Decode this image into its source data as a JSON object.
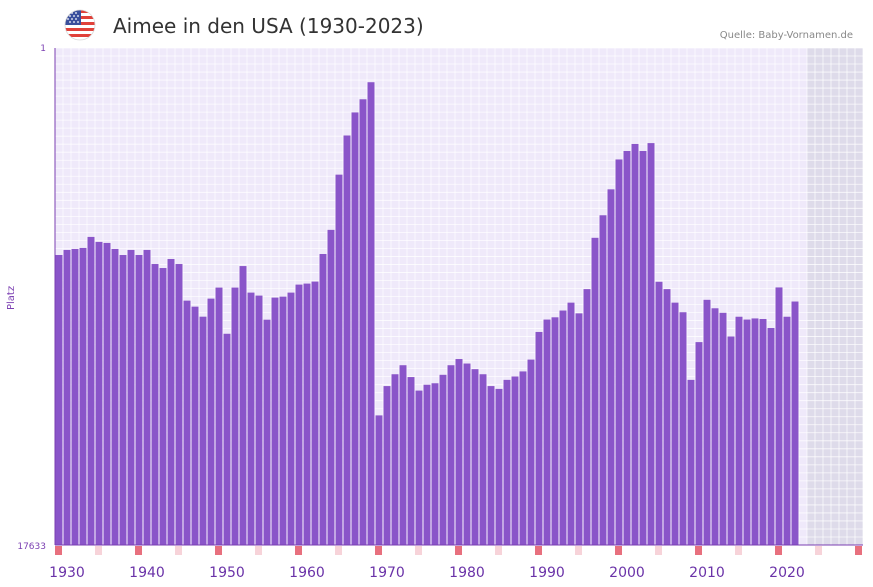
{
  "header": {
    "title": "Aimee in den USA (1930-2023)",
    "source": "Quelle: Baby-Vornamen.de",
    "flag_icon": "us-flag-icon"
  },
  "colors": {
    "bar": "#8a55c9",
    "plot_bg": "#efe9fa",
    "grid": "#ffffff",
    "future_bg": "#dedbea",
    "axis": "#7b3fb2",
    "label": "#6a32a8",
    "decade_marker": "#e8707e",
    "half_decade_marker": "#f7d3d9"
  },
  "chart_data": {
    "type": "bar",
    "title": "Aimee in den USA (1930-2023)",
    "xlabel": "",
    "ylabel": "Platz",
    "y_axis_inverted": true,
    "ylim": [
      1,
      17633
    ],
    "x_range": [
      1929,
      2029
    ],
    "y_tick_labels": [
      "1",
      "17633"
    ],
    "x_tick_labels": [
      "1930",
      "1940",
      "1950",
      "1960",
      "1970",
      "1980",
      "1990",
      "2000",
      "2010",
      "2020"
    ],
    "x_ticks": [
      1930,
      1940,
      1950,
      1960,
      1970,
      1980,
      1990,
      2000,
      2010,
      2020
    ],
    "decade_marker_years": [
      1929,
      1939,
      1949,
      1959,
      1969,
      1979,
      1989,
      1999,
      2009,
      2019,
      2029
    ],
    "half_decade_marker_years": [
      1934,
      1944,
      1954,
      1964,
      1974,
      1984,
      1994,
      2004,
      2014,
      2024
    ],
    "future_shade_from_year": 2023,
    "x": [
      1929,
      1930,
      1931,
      1932,
      1933,
      1934,
      1935,
      1936,
      1937,
      1938,
      1939,
      1940,
      1941,
      1942,
      1943,
      1944,
      1945,
      1946,
      1947,
      1948,
      1949,
      1950,
      1951,
      1952,
      1953,
      1954,
      1955,
      1956,
      1957,
      1958,
      1959,
      1960,
      1961,
      1962,
      1963,
      1964,
      1965,
      1966,
      1967,
      1968,
      1969,
      1970,
      1971,
      1972,
      1973,
      1974,
      1975,
      1976,
      1977,
      1978,
      1979,
      1980,
      1981,
      1982,
      1983,
      1984,
      1985,
      1986,
      1987,
      1988,
      1989,
      1990,
      1991,
      1992,
      1993,
      1994,
      1995,
      1996,
      1997,
      1998,
      1999,
      2000,
      2001,
      2002,
      2003,
      2004,
      2005,
      2006,
      2007,
      2008,
      2009,
      2010,
      2011,
      2012,
      2013,
      2014,
      2015,
      2016,
      2017,
      2018,
      2019,
      2020,
      2021
    ],
    "values": [
      7345,
      7166,
      7130,
      7095,
      6703,
      6881,
      6917,
      7130,
      7345,
      7166,
      7345,
      7166,
      7665,
      7807,
      7487,
      7665,
      8964,
      9177,
      9533,
      8892,
      8501,
      10139,
      8501,
      7737,
      8679,
      8785,
      9640,
      8856,
      8821,
      8679,
      8395,
      8359,
      8288,
      7309,
      6453,
      4494,
      3105,
      2286,
      1820,
      1215,
      13035,
      11995,
      11575,
      11255,
      11675,
      12155,
      11947,
      11895,
      11595,
      11255,
      11035,
      11195,
      11395,
      11575,
      11995,
      12095,
      11775,
      11655,
      11475,
      11055,
      10075,
      9635,
      9555,
      9315,
      9035,
      9415,
      8555,
      6735,
      5935,
      5015,
      3955,
      3655,
      3405,
      3655,
      3375,
      8295,
      8555,
      9035,
      9375,
      11775,
      10435,
      8935,
      9235,
      9395,
      10235,
      9535,
      9635,
      9595,
      9615,
      9935,
      8495,
      9535,
      8995
    ]
  }
}
